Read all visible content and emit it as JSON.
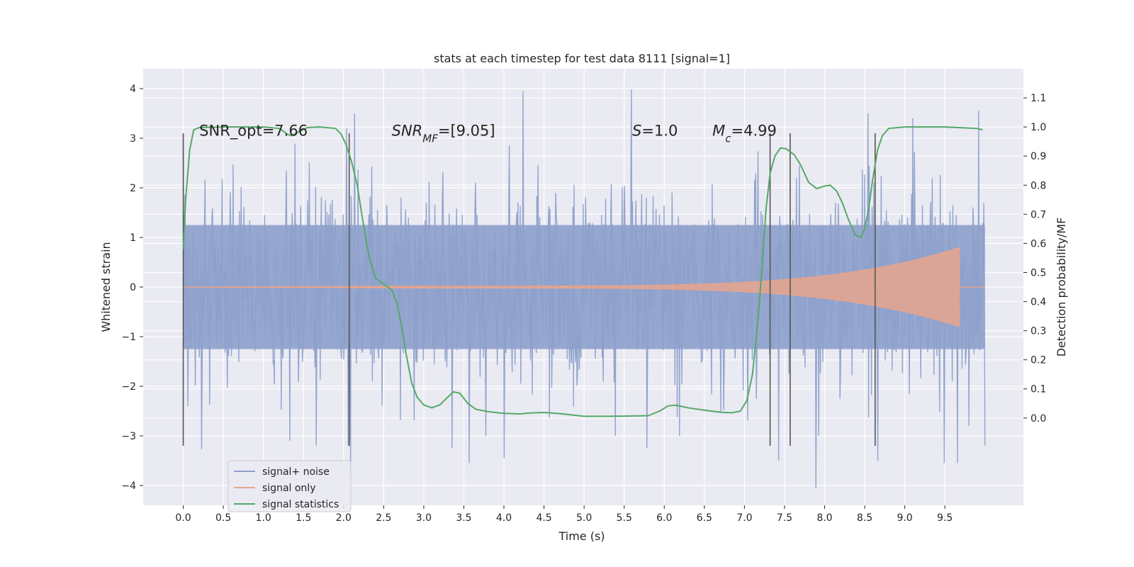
{
  "chart_data": {
    "type": "line",
    "title": "stats at each timestep for test data 8111 [signal=1]",
    "xlabel": "Time (s)",
    "ylabel": "Whitened strain",
    "ylabel_right": "Detection probability/MF",
    "xlim": [
      -0.5,
      10.48
    ],
    "ylim": [
      -4.4,
      4.4
    ],
    "ylim_right": [
      -0.3,
      1.2
    ],
    "x_ticks": [
      0.0,
      0.5,
      1.0,
      1.5,
      2.0,
      2.5,
      3.0,
      3.5,
      4.0,
      4.5,
      5.0,
      5.5,
      6.0,
      6.5,
      7.0,
      7.5,
      8.0,
      8.5,
      9.0,
      9.5
    ],
    "x_tick_labels": [
      "0.0",
      "0.5",
      "1.0",
      "1.5",
      "2.0",
      "2.5",
      "3.0",
      "3.5",
      "4.0",
      "4.5",
      "5.0",
      "5.5",
      "6.0",
      "6.5",
      "7.0",
      "7.5",
      "8.0",
      "8.5",
      "9.0",
      "9.5"
    ],
    "y_ticks": [
      -4,
      -3,
      -2,
      -1,
      0,
      1,
      2,
      3,
      4
    ],
    "y_tick_labels": [
      "−4",
      "−3",
      "−2",
      "−1",
      "0",
      "1",
      "2",
      "3",
      "4"
    ],
    "y_ticks_right": [
      0.0,
      0.1,
      0.2,
      0.3,
      0.4,
      0.5,
      0.6,
      0.7,
      0.8,
      0.9,
      1.0,
      1.1
    ],
    "y_tick_labels_right": [
      "0.0",
      "0.1",
      "0.2",
      "0.3",
      "0.4",
      "0.5",
      "0.6",
      "0.7",
      "0.8",
      "0.9",
      "1.0",
      "1.1"
    ],
    "grid": true,
    "legend_position": "lower-left",
    "annotations": [
      {
        "parts": [
          {
            "text": "SNR_opt=7.66",
            "style": "normal"
          }
        ],
        "x": 0.2,
        "y": 3.05
      },
      {
        "parts": [
          {
            "text": "SNR",
            "style": "italic"
          },
          {
            "text": "MF",
            "style": "italic-sub"
          },
          {
            "text": "=[9.05]",
            "style": "normal"
          }
        ],
        "x": 2.6,
        "y": 3.05
      },
      {
        "parts": [
          {
            "text": "S",
            "style": "italic"
          },
          {
            "text": "=1.0",
            "style": "normal"
          }
        ],
        "x": 5.6,
        "y": 3.05
      },
      {
        "parts": [
          {
            "text": "M",
            "style": "italic"
          },
          {
            "text": "c",
            "style": "italic-sub"
          },
          {
            "text": "=4.99",
            "style": "normal"
          }
        ],
        "x": 6.6,
        "y": 3.05
      }
    ],
    "vertical_lines": [
      0.0,
      2.07,
      7.32,
      7.57,
      8.63
    ],
    "vertical_line_range": [
      -3.2,
      3.1
    ],
    "series": [
      {
        "name": "signal+ noise",
        "axis": "left",
        "color": "#8da0cb",
        "description_range": [
          -4.1,
          4.0
        ],
        "x_range": [
          0.0,
          10.0
        ],
        "sigma": 1.0,
        "spikes": [
          {
            "x": 0.0,
            "y": 3.0
          },
          {
            "x": 0.06,
            "y": -2.4
          },
          {
            "x": 0.23,
            "y": -3.27
          },
          {
            "x": 1.33,
            "y": -3.1
          },
          {
            "x": 1.66,
            "y": -3.2
          },
          {
            "x": 2.04,
            "y": 3.2
          },
          {
            "x": 2.06,
            "y": -3.2
          },
          {
            "x": 2.09,
            "y": -3.8
          },
          {
            "x": 2.14,
            "y": 3.5
          },
          {
            "x": 3.35,
            "y": -3.25
          },
          {
            "x": 3.57,
            "y": -3.55
          },
          {
            "x": 4.0,
            "y": -3.45
          },
          {
            "x": 4.24,
            "y": 3.95
          },
          {
            "x": 5.59,
            "y": 3.98
          },
          {
            "x": 5.78,
            "y": -3.25
          },
          {
            "x": 7.43,
            "y": -3.5
          },
          {
            "x": 7.89,
            "y": -4.05
          },
          {
            "x": 8.54,
            "y": 3.5
          },
          {
            "x": 8.66,
            "y": -3.5
          },
          {
            "x": 9.1,
            "y": 3.4
          },
          {
            "x": 9.49,
            "y": -3.55
          },
          {
            "x": 9.66,
            "y": -3.55
          },
          {
            "x": 9.92,
            "y": 3.55
          },
          {
            "x": 10.0,
            "y": -3.2
          }
        ]
      },
      {
        "name": "signal only",
        "axis": "left",
        "color": "#e8a48c",
        "x_range": [
          3.0,
          9.68
        ],
        "amplitude_start": 0.02,
        "amplitude_end": 0.8,
        "description": "chirp envelope growing from ~0.02 at 3.0 s to ~0.8 at 9.68 s"
      },
      {
        "name": "signal statistics",
        "axis": "right",
        "color": "#55a868",
        "points": [
          [
            0.0,
            0.58
          ],
          [
            0.03,
            0.75
          ],
          [
            0.08,
            0.92
          ],
          [
            0.13,
            0.99
          ],
          [
            0.2,
            0.998
          ],
          [
            0.5,
            1.0
          ],
          [
            1.0,
            1.0
          ],
          [
            1.2,
            0.995
          ],
          [
            1.3,
            0.975
          ],
          [
            1.35,
            0.97
          ],
          [
            1.45,
            0.985
          ],
          [
            1.55,
            0.998
          ],
          [
            1.7,
            1.0
          ],
          [
            1.9,
            0.995
          ],
          [
            1.97,
            0.975
          ],
          [
            2.03,
            0.94
          ],
          [
            2.1,
            0.88
          ],
          [
            2.17,
            0.8
          ],
          [
            2.25,
            0.66
          ],
          [
            2.32,
            0.55
          ],
          [
            2.4,
            0.48
          ],
          [
            2.5,
            0.46
          ],
          [
            2.6,
            0.44
          ],
          [
            2.66,
            0.4
          ],
          [
            2.72,
            0.32
          ],
          [
            2.78,
            0.22
          ],
          [
            2.85,
            0.12
          ],
          [
            2.92,
            0.07
          ],
          [
            3.0,
            0.045
          ],
          [
            3.1,
            0.035
          ],
          [
            3.2,
            0.045
          ],
          [
            3.3,
            0.072
          ],
          [
            3.37,
            0.09
          ],
          [
            3.45,
            0.085
          ],
          [
            3.55,
            0.05
          ],
          [
            3.65,
            0.03
          ],
          [
            3.8,
            0.022
          ],
          [
            4.0,
            0.016
          ],
          [
            4.2,
            0.014
          ],
          [
            4.3,
            0.017
          ],
          [
            4.5,
            0.019
          ],
          [
            4.7,
            0.015
          ],
          [
            5.0,
            0.006
          ],
          [
            5.3,
            0.006
          ],
          [
            5.6,
            0.007
          ],
          [
            5.8,
            0.008
          ],
          [
            5.95,
            0.025
          ],
          [
            6.05,
            0.042
          ],
          [
            6.15,
            0.044
          ],
          [
            6.3,
            0.035
          ],
          [
            6.5,
            0.027
          ],
          [
            6.7,
            0.02
          ],
          [
            6.85,
            0.018
          ],
          [
            6.95,
            0.024
          ],
          [
            7.03,
            0.06
          ],
          [
            7.1,
            0.15
          ],
          [
            7.17,
            0.34
          ],
          [
            7.22,
            0.52
          ],
          [
            7.27,
            0.72
          ],
          [
            7.32,
            0.84
          ],
          [
            7.38,
            0.9
          ],
          [
            7.45,
            0.928
          ],
          [
            7.52,
            0.925
          ],
          [
            7.62,
            0.905
          ],
          [
            7.7,
            0.87
          ],
          [
            7.8,
            0.81
          ],
          [
            7.9,
            0.788
          ],
          [
            8.0,
            0.797
          ],
          [
            8.07,
            0.8
          ],
          [
            8.15,
            0.78
          ],
          [
            8.22,
            0.74
          ],
          [
            8.3,
            0.68
          ],
          [
            8.38,
            0.63
          ],
          [
            8.45,
            0.62
          ],
          [
            8.5,
            0.65
          ],
          [
            8.55,
            0.72
          ],
          [
            8.6,
            0.82
          ],
          [
            8.66,
            0.92
          ],
          [
            8.72,
            0.97
          ],
          [
            8.8,
            0.995
          ],
          [
            9.0,
            1.0
          ],
          [
            9.5,
            1.0
          ],
          [
            9.9,
            0.995
          ],
          [
            9.97,
            0.99
          ]
        ]
      }
    ],
    "legend": [
      {
        "label": "signal+ noise",
        "color": "#8da0cb"
      },
      {
        "label": "signal only",
        "color": "#e8a48c"
      },
      {
        "label": "signal statistics",
        "color": "#55a868"
      }
    ]
  }
}
